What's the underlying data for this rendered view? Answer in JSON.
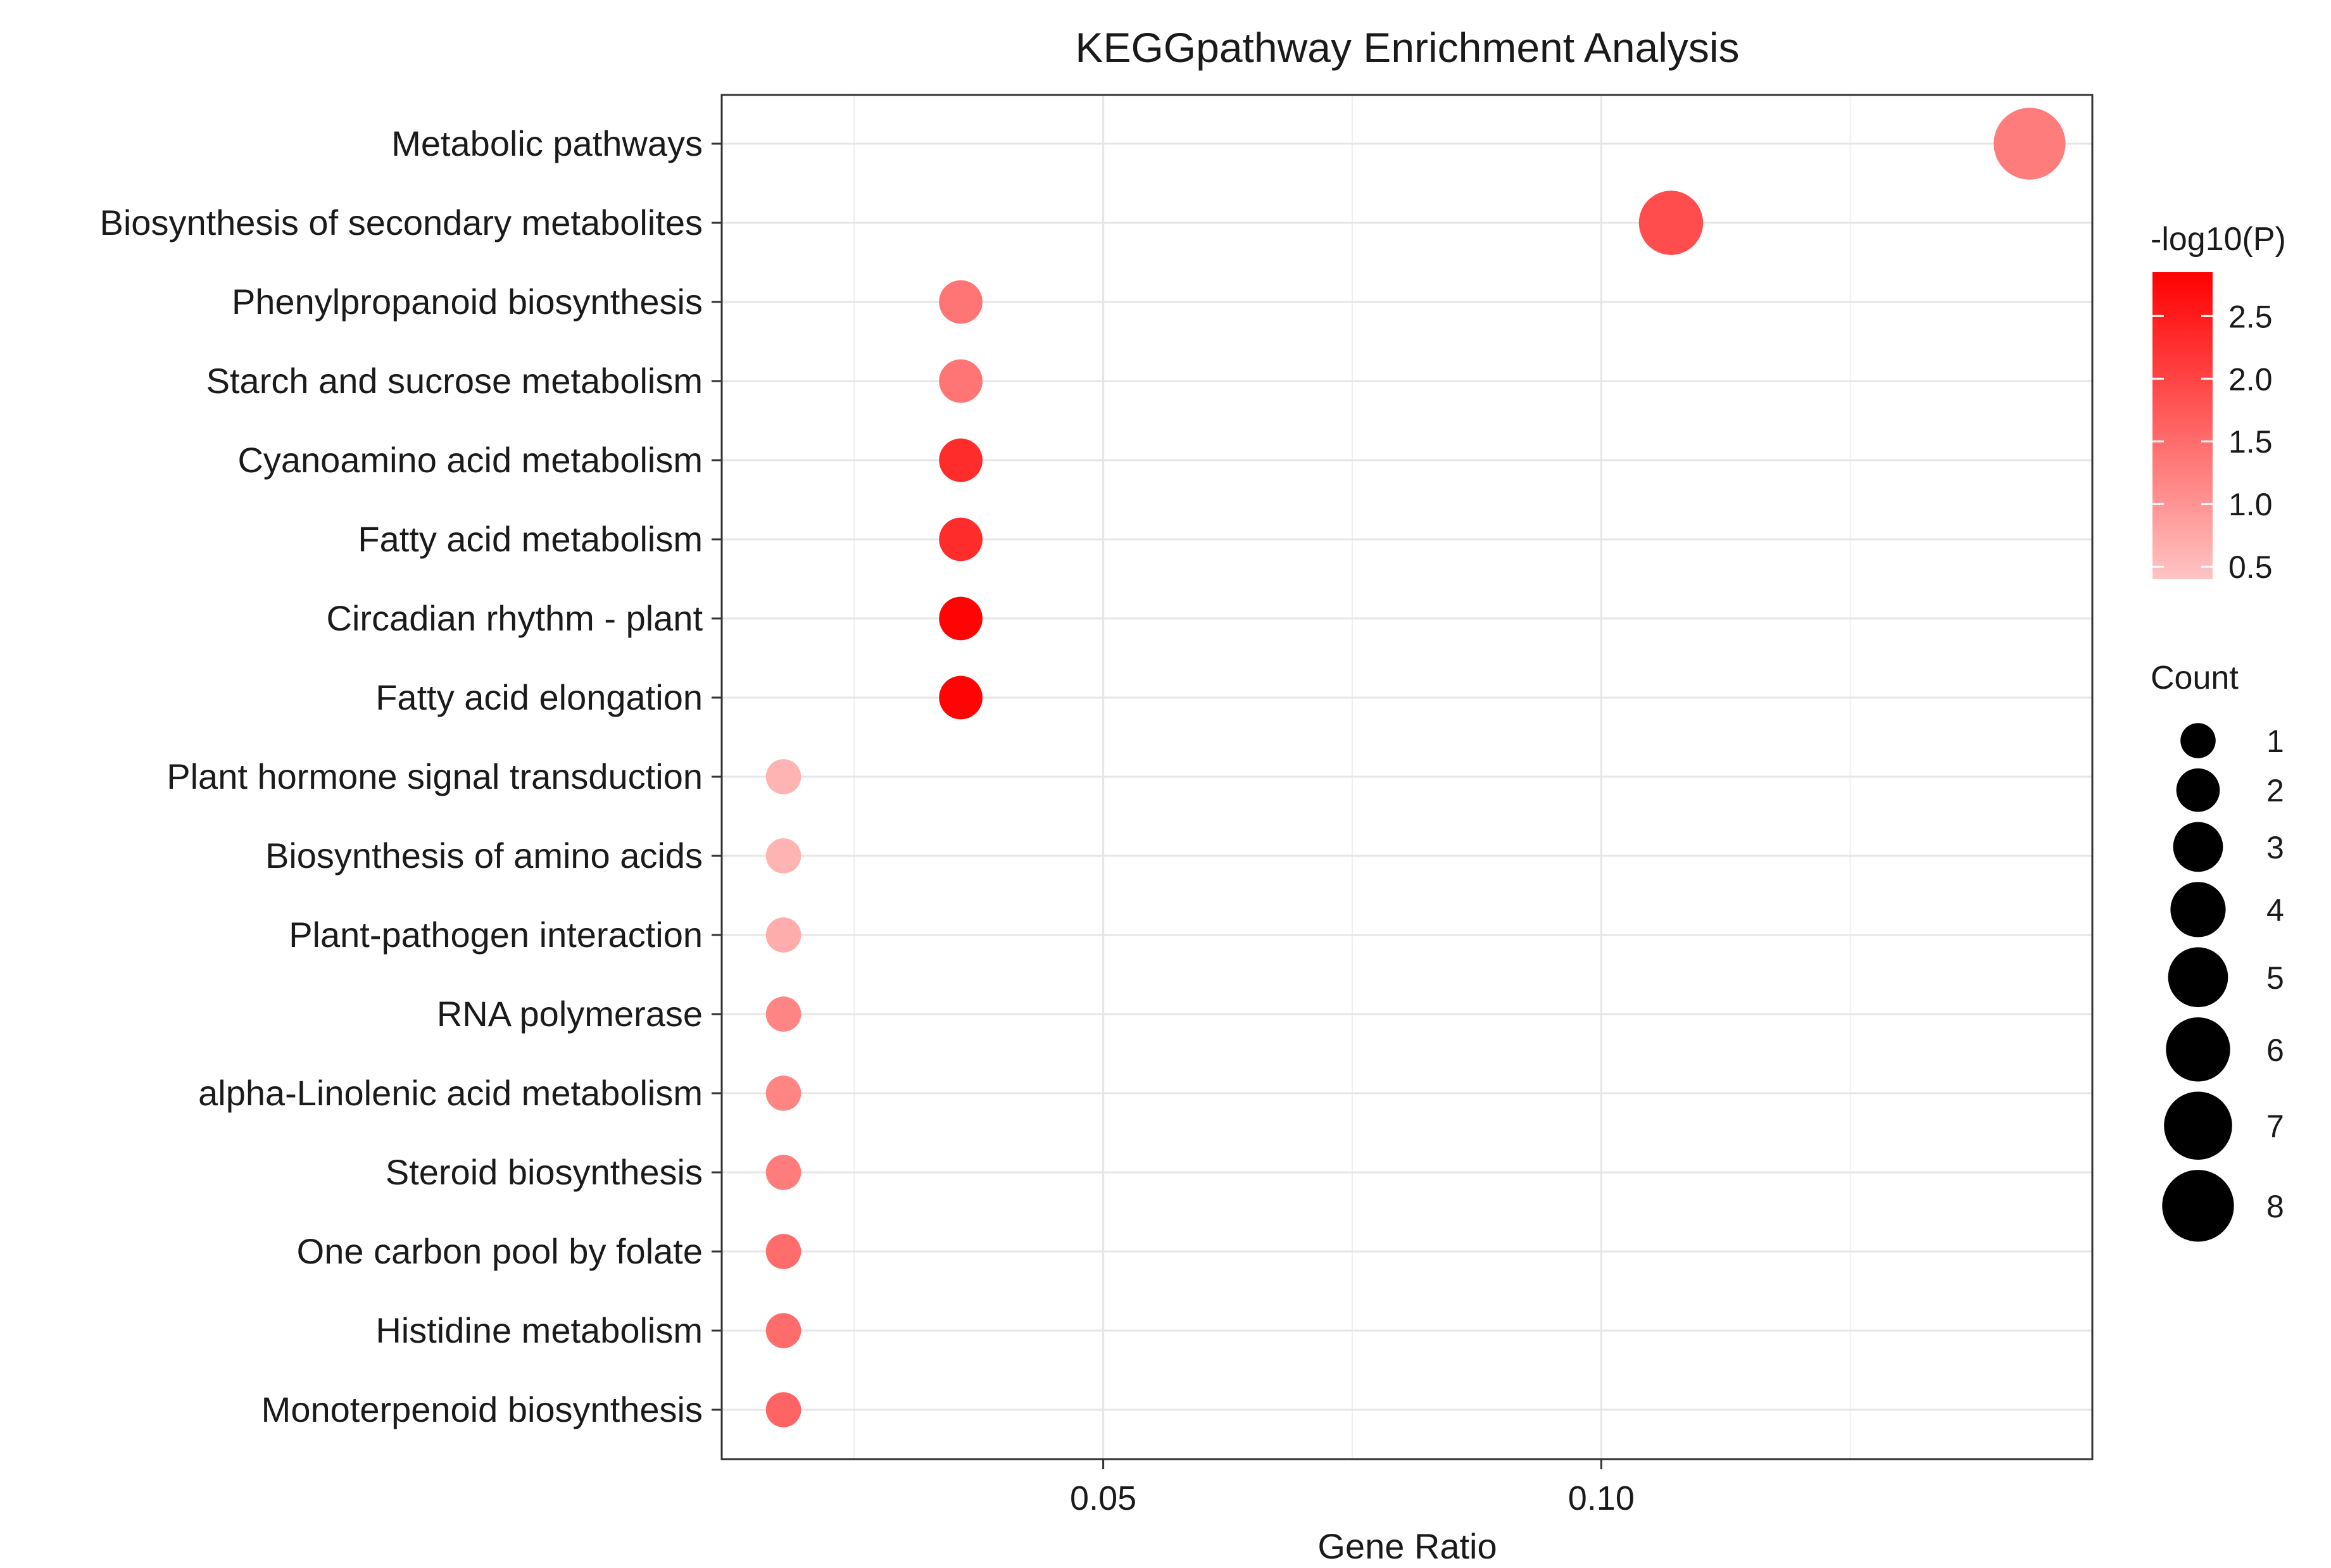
{
  "chart_data": {
    "type": "scatter",
    "title": "KEGGpathway Enrichment Analysis",
    "xlabel": "Gene Ratio",
    "ylabel": "",
    "xlim": [
      0.0117,
      0.1493
    ],
    "x_ticks": [
      0.05,
      0.1
    ],
    "x_tick_labels": [
      "0.05",
      "0.10"
    ],
    "grid": true,
    "categories": [
      "Metabolic pathways",
      "Biosynthesis of secondary metabolites",
      "Phenylpropanoid biosynthesis",
      "Starch and sucrose metabolism",
      "Cyanoamino acid metabolism",
      "Fatty acid metabolism",
      "Circadian rhythm - plant",
      "Fatty acid elongation",
      "Plant hormone signal transduction",
      "Biosynthesis of amino acids",
      "Plant-pathogen interaction",
      "RNA polymerase",
      "alpha-Linolenic acid metabolism",
      "Steroid biosynthesis",
      "One carbon pool by folate",
      "Histidine metabolism",
      "Monoterpenoid biosynthesis"
    ],
    "points": [
      {
        "term": "Metabolic pathways",
        "gene_ratio": 0.143,
        "count": 8,
        "neg_log10_p": 1.3
      },
      {
        "term": "Biosynthesis of secondary metabolites",
        "gene_ratio": 0.107,
        "count": 6,
        "neg_log10_p": 1.9
      },
      {
        "term": "Phenylpropanoid biosynthesis",
        "gene_ratio": 0.0357,
        "count": 2,
        "neg_log10_p": 1.4
      },
      {
        "term": "Starch and sucrose metabolism",
        "gene_ratio": 0.0357,
        "count": 2,
        "neg_log10_p": 1.4
      },
      {
        "term": "Cyanoamino acid metabolism",
        "gene_ratio": 0.0357,
        "count": 2,
        "neg_log10_p": 2.3
      },
      {
        "term": "Fatty acid metabolism",
        "gene_ratio": 0.0357,
        "count": 2,
        "neg_log10_p": 2.3
      },
      {
        "term": "Circadian rhythm - plant",
        "gene_ratio": 0.0357,
        "count": 2,
        "neg_log10_p": 2.8
      },
      {
        "term": "Fatty acid elongation",
        "gene_ratio": 0.0357,
        "count": 2,
        "neg_log10_p": 2.8
      },
      {
        "term": "Plant hormone signal transduction",
        "gene_ratio": 0.0179,
        "count": 1,
        "neg_log10_p": 0.6
      },
      {
        "term": "Biosynthesis of amino acids",
        "gene_ratio": 0.0179,
        "count": 1,
        "neg_log10_p": 0.6
      },
      {
        "term": "Plant-pathogen interaction",
        "gene_ratio": 0.0179,
        "count": 1,
        "neg_log10_p": 0.7
      },
      {
        "term": "RNA polymerase",
        "gene_ratio": 0.0179,
        "count": 1,
        "neg_log10_p": 1.2
      },
      {
        "term": "alpha-Linolenic acid metabolism",
        "gene_ratio": 0.0179,
        "count": 1,
        "neg_log10_p": 1.2
      },
      {
        "term": "Steroid biosynthesis",
        "gene_ratio": 0.0179,
        "count": 1,
        "neg_log10_p": 1.3
      },
      {
        "term": "One carbon pool by folate",
        "gene_ratio": 0.0179,
        "count": 1,
        "neg_log10_p": 1.5
      },
      {
        "term": "Histidine metabolism",
        "gene_ratio": 0.0179,
        "count": 1,
        "neg_log10_p": 1.5
      },
      {
        "term": "Monoterpenoid biosynthesis",
        "gene_ratio": 0.0179,
        "count": 1,
        "neg_log10_p": 1.6
      }
    ],
    "color_legend": {
      "title": "-log10(P)",
      "range": [
        0.4,
        2.85
      ],
      "low_color": "#ffc4c4",
      "high_color": "#ff0000",
      "ticks": [
        0.5,
        1.0,
        1.5,
        2.0,
        2.5
      ],
      "tick_labels": [
        "0.5",
        "1.0",
        "1.5",
        "2.0",
        "2.5"
      ]
    },
    "size_legend": {
      "title": "Count",
      "values": [
        1,
        2,
        3,
        4,
        5,
        6,
        7,
        8
      ],
      "labels": [
        "1",
        "2",
        "3",
        "4",
        "5",
        "6",
        "7",
        "8"
      ],
      "color": "#000000"
    }
  }
}
